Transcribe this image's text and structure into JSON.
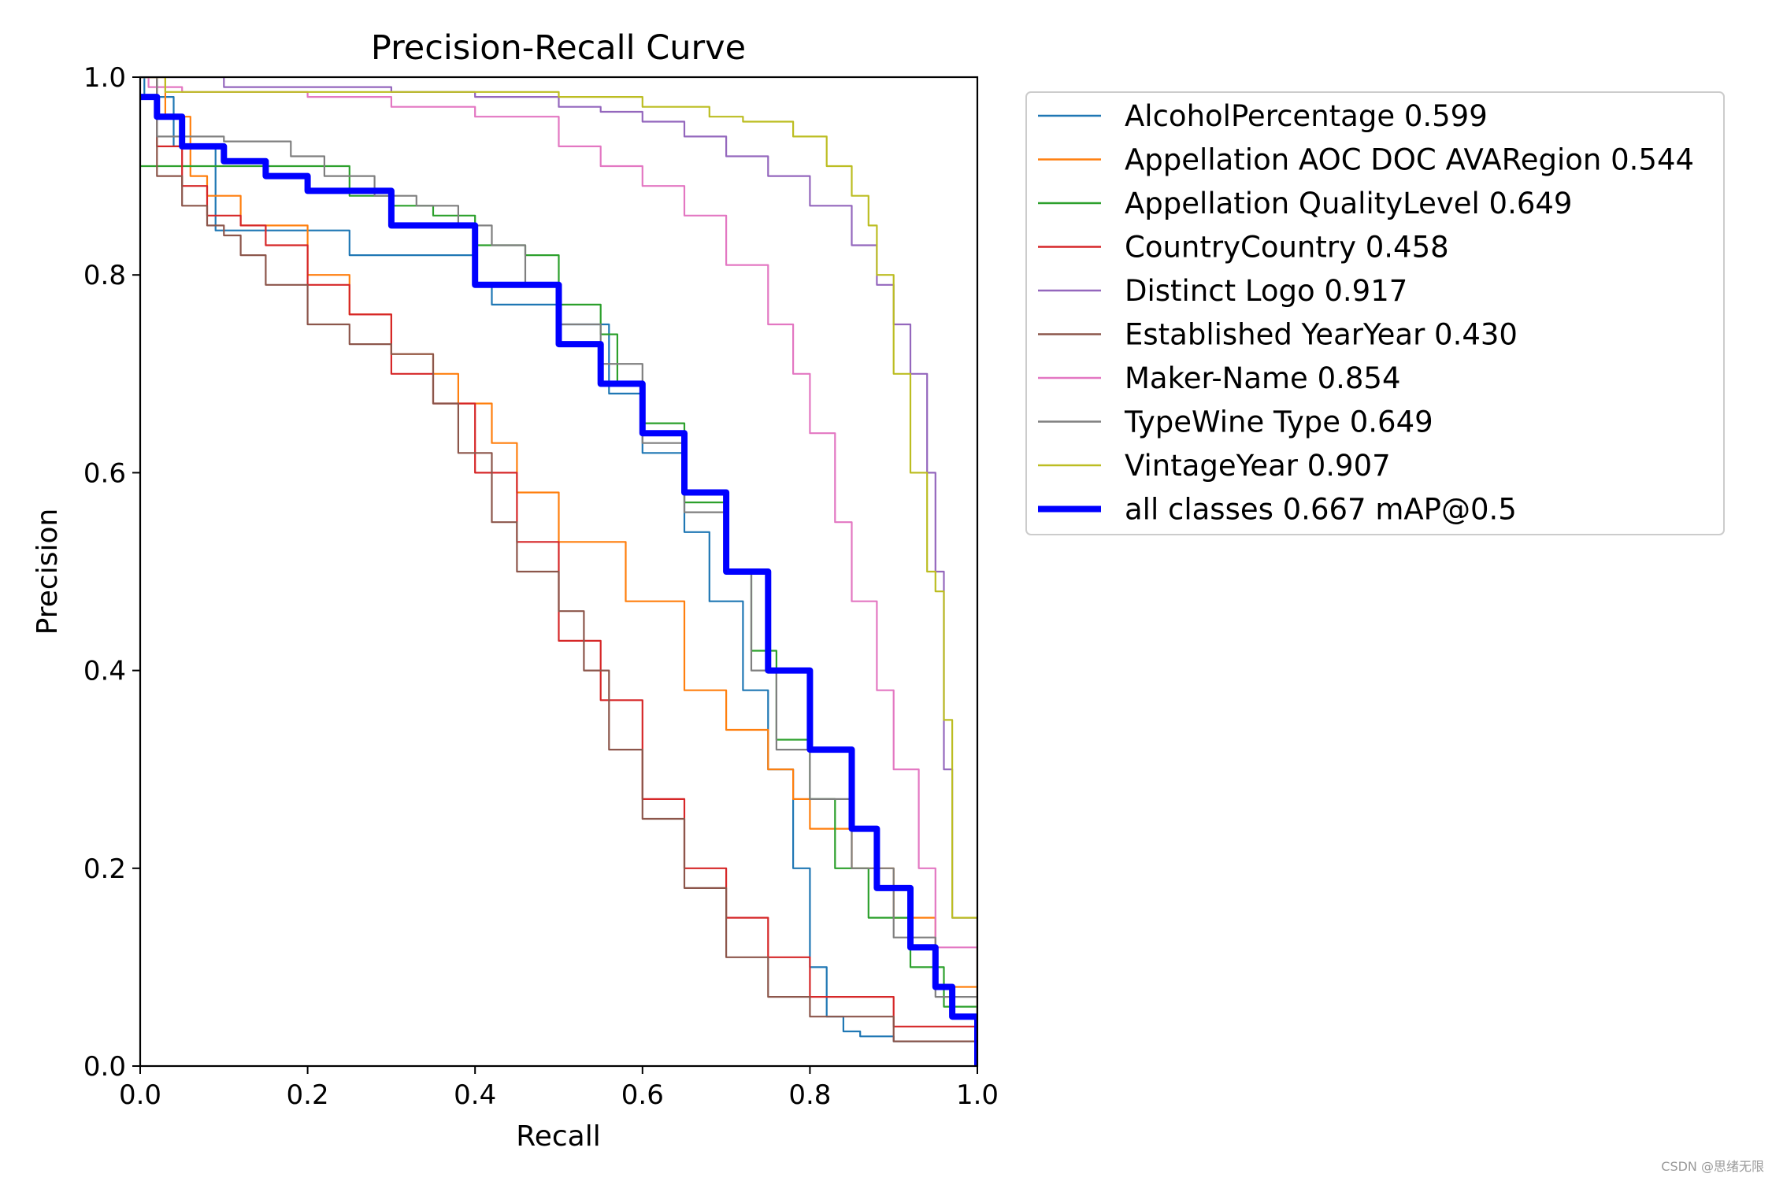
{
  "chart_data": {
    "type": "line",
    "title": "Precision-Recall Curve",
    "xlabel": "Recall",
    "ylabel": "Precision",
    "xlim": [
      0,
      1
    ],
    "ylim": [
      0,
      1
    ],
    "xticks": [
      "0.0",
      "0.2",
      "0.4",
      "0.6",
      "0.8",
      "1.0"
    ],
    "yticks": [
      "0.0",
      "0.2",
      "0.4",
      "0.6",
      "0.8",
      "1.0"
    ],
    "legend_position": "outside-right",
    "series": [
      {
        "name": "AlcoholPercentage 0.599",
        "color": "#1f77b4",
        "width": "thin",
        "x": [
          0,
          0.005,
          0.04,
          0.09,
          0.2,
          0.25,
          0.3,
          0.37,
          0.4,
          0.42,
          0.5,
          0.56,
          0.6,
          0.65,
          0.68,
          0.72,
          0.75,
          0.78,
          0.8,
          0.82,
          0.84,
          0.86,
          0.9,
          1.0
        ],
        "y": [
          1.0,
          0.98,
          0.93,
          0.845,
          0.845,
          0.82,
          0.82,
          0.82,
          0.79,
          0.77,
          0.75,
          0.68,
          0.62,
          0.54,
          0.47,
          0.38,
          0.3,
          0.2,
          0.1,
          0.05,
          0.035,
          0.03,
          0.025,
          0.0
        ]
      },
      {
        "name": "Appellation AOC DOC AVARegion 0.544",
        "color": "#ff7f0e",
        "width": "thin",
        "x": [
          0,
          0.03,
          0.06,
          0.08,
          0.12,
          0.2,
          0.25,
          0.3,
          0.35,
          0.38,
          0.42,
          0.45,
          0.5,
          0.58,
          0.65,
          0.7,
          0.75,
          0.78,
          0.8,
          0.85,
          0.9,
          0.95,
          1.0
        ],
        "y": [
          1.0,
          0.96,
          0.9,
          0.88,
          0.85,
          0.8,
          0.76,
          0.72,
          0.7,
          0.67,
          0.63,
          0.58,
          0.53,
          0.47,
          0.38,
          0.34,
          0.3,
          0.27,
          0.24,
          0.2,
          0.15,
          0.08,
          0.0
        ]
      },
      {
        "name": "Appellation QualityLevel 0.649",
        "color": "#2ca02c",
        "width": "thin",
        "x": [
          0,
          0.02,
          0.08,
          0.15,
          0.25,
          0.3,
          0.35,
          0.4,
          0.46,
          0.5,
          0.55,
          0.57,
          0.6,
          0.65,
          0.7,
          0.73,
          0.76,
          0.8,
          0.83,
          0.87,
          0.92,
          0.96,
          1.0
        ],
        "y": [
          0.91,
          0.91,
          0.91,
          0.91,
          0.88,
          0.87,
          0.86,
          0.83,
          0.82,
          0.77,
          0.74,
          0.69,
          0.65,
          0.57,
          0.5,
          0.42,
          0.33,
          0.27,
          0.2,
          0.15,
          0.1,
          0.06,
          0.0
        ]
      },
      {
        "name": "CountryCountry 0.458",
        "color": "#d62728",
        "width": "thin",
        "x": [
          0,
          0.02,
          0.05,
          0.08,
          0.12,
          0.15,
          0.2,
          0.25,
          0.3,
          0.35,
          0.4,
          0.45,
          0.5,
          0.55,
          0.6,
          0.65,
          0.7,
          0.75,
          0.8,
          0.9,
          1.0
        ],
        "y": [
          1.0,
          0.93,
          0.89,
          0.86,
          0.85,
          0.83,
          0.79,
          0.76,
          0.7,
          0.67,
          0.6,
          0.53,
          0.43,
          0.37,
          0.27,
          0.2,
          0.15,
          0.11,
          0.07,
          0.04,
          0.0
        ]
      },
      {
        "name": "Distinct Logo 0.917",
        "color": "#9467bd",
        "width": "thin",
        "x": [
          0,
          0.06,
          0.1,
          0.2,
          0.3,
          0.4,
          0.5,
          0.55,
          0.6,
          0.65,
          0.7,
          0.75,
          0.8,
          0.85,
          0.88,
          0.9,
          0.92,
          0.94,
          0.95,
          0.96,
          0.97,
          1.0
        ],
        "y": [
          1.0,
          1.0,
          0.99,
          0.99,
          0.985,
          0.98,
          0.97,
          0.965,
          0.955,
          0.94,
          0.92,
          0.9,
          0.87,
          0.83,
          0.79,
          0.75,
          0.7,
          0.6,
          0.5,
          0.3,
          0.15,
          0.0
        ]
      },
      {
        "name": "Established YearYear 0.430",
        "color": "#8c564b",
        "width": "thin",
        "x": [
          0,
          0.02,
          0.05,
          0.08,
          0.1,
          0.12,
          0.15,
          0.2,
          0.25,
          0.3,
          0.35,
          0.38,
          0.42,
          0.45,
          0.5,
          0.53,
          0.56,
          0.6,
          0.65,
          0.7,
          0.75,
          0.8,
          0.9,
          1.0
        ],
        "y": [
          1.0,
          0.9,
          0.87,
          0.85,
          0.84,
          0.82,
          0.79,
          0.75,
          0.73,
          0.72,
          0.67,
          0.62,
          0.55,
          0.5,
          0.46,
          0.4,
          0.32,
          0.25,
          0.18,
          0.11,
          0.07,
          0.05,
          0.025,
          0.0
        ]
      },
      {
        "name": "Maker-Name 0.854",
        "color": "#e377c2",
        "width": "thin",
        "x": [
          0,
          0.01,
          0.05,
          0.1,
          0.2,
          0.3,
          0.4,
          0.5,
          0.55,
          0.6,
          0.65,
          0.7,
          0.75,
          0.78,
          0.8,
          0.83,
          0.85,
          0.88,
          0.9,
          0.93,
          0.95,
          1.0
        ],
        "y": [
          1.0,
          0.99,
          0.985,
          0.985,
          0.98,
          0.97,
          0.96,
          0.93,
          0.91,
          0.89,
          0.86,
          0.81,
          0.75,
          0.7,
          0.64,
          0.55,
          0.47,
          0.38,
          0.3,
          0.2,
          0.12,
          0.0
        ]
      },
      {
        "name": "TypeWine Type 0.649",
        "color": "#7f7f7f",
        "width": "thin",
        "x": [
          0,
          0.02,
          0.1,
          0.18,
          0.22,
          0.28,
          0.33,
          0.38,
          0.42,
          0.46,
          0.5,
          0.55,
          0.6,
          0.65,
          0.7,
          0.73,
          0.76,
          0.8,
          0.85,
          0.9,
          0.95,
          1.0
        ],
        "y": [
          1.0,
          0.94,
          0.935,
          0.92,
          0.9,
          0.88,
          0.87,
          0.85,
          0.83,
          0.79,
          0.75,
          0.71,
          0.63,
          0.56,
          0.5,
          0.4,
          0.32,
          0.27,
          0.2,
          0.13,
          0.07,
          0.0
        ]
      },
      {
        "name": "VintageYear 0.907",
        "color": "#bcbd22",
        "width": "thin",
        "x": [
          0,
          0.03,
          0.1,
          0.2,
          0.3,
          0.4,
          0.5,
          0.6,
          0.68,
          0.72,
          0.78,
          0.82,
          0.85,
          0.87,
          0.88,
          0.9,
          0.92,
          0.94,
          0.95,
          0.96,
          0.97,
          1.0
        ],
        "y": [
          1.0,
          0.985,
          0.985,
          0.985,
          0.985,
          0.985,
          0.98,
          0.97,
          0.96,
          0.955,
          0.94,
          0.91,
          0.88,
          0.85,
          0.8,
          0.7,
          0.6,
          0.5,
          0.48,
          0.35,
          0.15,
          0.0
        ]
      },
      {
        "name": "all classes 0.667 mAP@0.5",
        "color": "#0000ff",
        "width": "thick",
        "x": [
          0,
          0.02,
          0.05,
          0.1,
          0.15,
          0.2,
          0.3,
          0.4,
          0.5,
          0.55,
          0.6,
          0.65,
          0.7,
          0.75,
          0.8,
          0.85,
          0.88,
          0.92,
          0.95,
          0.97,
          1.0
        ],
        "y": [
          0.98,
          0.96,
          0.93,
          0.915,
          0.9,
          0.885,
          0.85,
          0.79,
          0.73,
          0.69,
          0.64,
          0.58,
          0.5,
          0.4,
          0.32,
          0.24,
          0.18,
          0.12,
          0.08,
          0.05,
          0.0
        ]
      }
    ]
  },
  "watermark": "CSDN @思绪无限"
}
